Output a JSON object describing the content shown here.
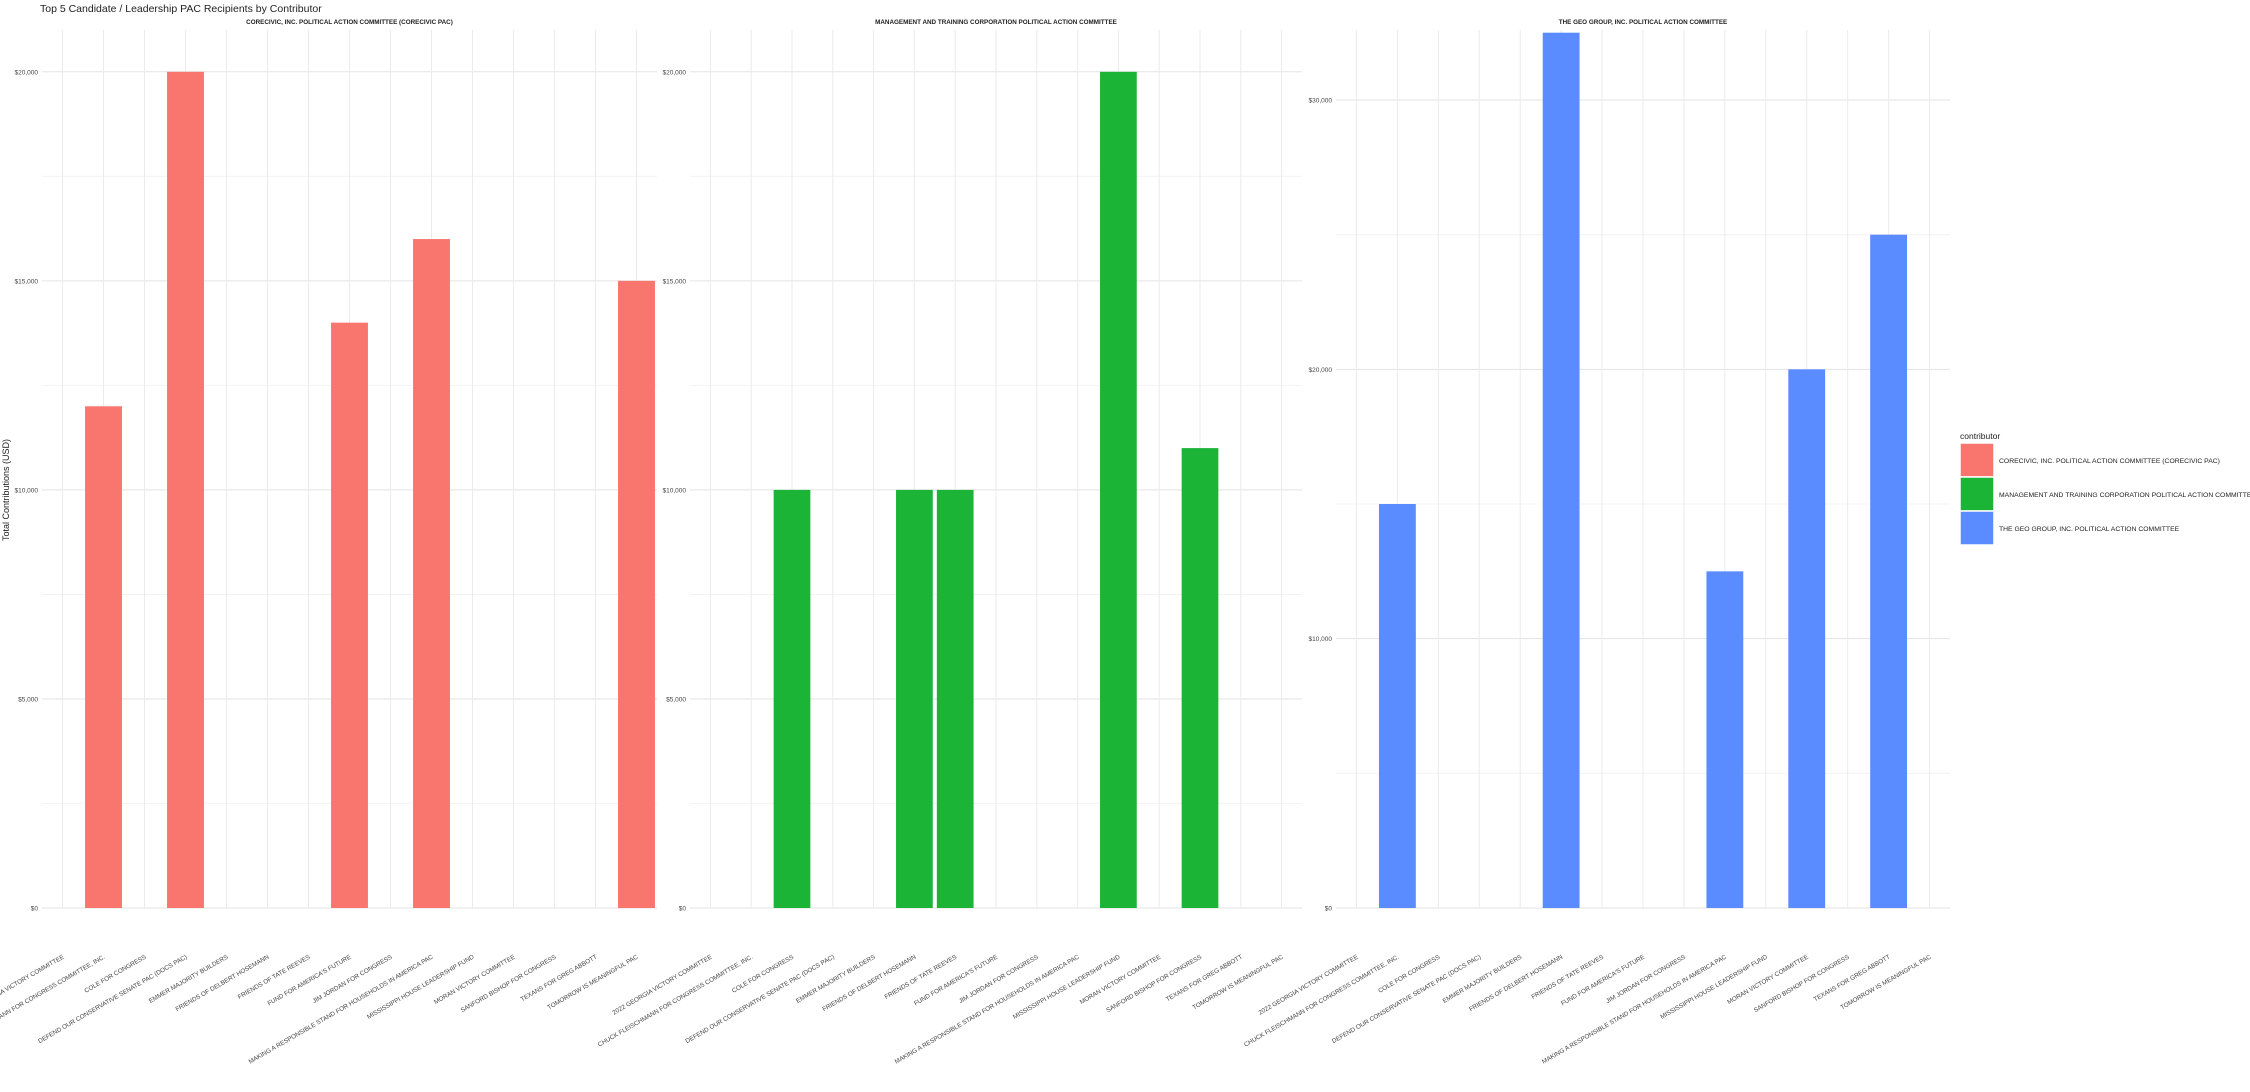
{
  "chart_data": {
    "type": "bar",
    "title": "Top 5 Candidate / Leadership PAC Recipients by Contributor",
    "ylabel": "Total Contributions (USD)",
    "xlabel": "",
    "grid": true,
    "legend_placement": "right",
    "legend": {
      "title": "contributor",
      "entries": [
        {
          "label": "CORECIVIC, INC. POLITICAL ACTION COMMITTEE (CORECIVIC PAC)",
          "color": "#F8766D"
        },
        {
          "label": "MANAGEMENT AND TRAINING CORPORATION POLITICAL ACTION COMMITTEE",
          "color": "#1BB437"
        },
        {
          "label": "THE GEO GROUP, INC. POLITICAL ACTION COMMITTEE",
          "color": "#5A8CFF"
        }
      ]
    },
    "categories": [
      "2022 GEORGIA VICTORY COMMITTEE",
      "CHUCK FLEISCHMANN FOR CONGRESS COMMITTEE, INC.",
      "COLE FOR CONGRESS",
      "DEFEND OUR CONSERVATIVE SENATE PAC (DOCS PAC)",
      "EMMER MAJORITY BUILDERS",
      "FRIENDS OF DELBERT HOSEMANN",
      "FRIENDS OF TATE REEVES",
      "FUND FOR AMERICA'S FUTURE",
      "JIM JORDAN FOR CONGRESS",
      "MAKING A RESPONSIBLE STAND FOR HOUSEHOLDS IN AMERICA PAC",
      "MISSISSIPPI HOUSE LEADERSHIP FUND",
      "MORAN VICTORY COMMITTEE",
      "SANFORD BISHOP FOR CONGRESS",
      "TEXANS FOR GREG ABBOTT",
      "TOMORROW IS MEANINGFUL PAC"
    ],
    "panels": [
      {
        "title": "CORECIVIC, INC. POLITICAL ACTION COMMITTEE (CORECIVIC PAC)",
        "color": "#F8766D",
        "ylim": [
          0,
          21000
        ],
        "yticks": [
          0,
          5000,
          10000,
          15000,
          20000
        ],
        "ytick_labels": [
          "$0",
          "$5,000",
          "$10,000",
          "$15,000",
          "$20,000"
        ],
        "values": [
          0,
          12000,
          0,
          20000,
          0,
          0,
          0,
          14000,
          0,
          16000,
          0,
          0,
          0,
          0,
          15000
        ]
      },
      {
        "title": "MANAGEMENT AND TRAINING CORPORATION POLITICAL ACTION COMMITTEE",
        "color": "#1BB437",
        "ylim": [
          0,
          21000
        ],
        "yticks": [
          0,
          5000,
          10000,
          15000,
          20000
        ],
        "ytick_labels": [
          "$0",
          "$5,000",
          "$10,000",
          "$15,000",
          "$20,000"
        ],
        "values": [
          0,
          0,
          10000,
          0,
          0,
          10000,
          10000,
          0,
          0,
          0,
          20000,
          0,
          11000,
          0,
          0
        ]
      },
      {
        "title": "THE GEO GROUP, INC. POLITICAL ACTION COMMITTEE",
        "color": "#5A8CFF",
        "ylim": [
          0,
          32600
        ],
        "yticks": [
          0,
          10000,
          20000,
          30000
        ],
        "ytick_labels": [
          "$0",
          "$10,000",
          "$20,000",
          "$30,000"
        ],
        "values": [
          0,
          15000,
          0,
          0,
          0,
          32500,
          0,
          0,
          0,
          12500,
          0,
          20000,
          0,
          25000,
          0
        ]
      }
    ]
  }
}
